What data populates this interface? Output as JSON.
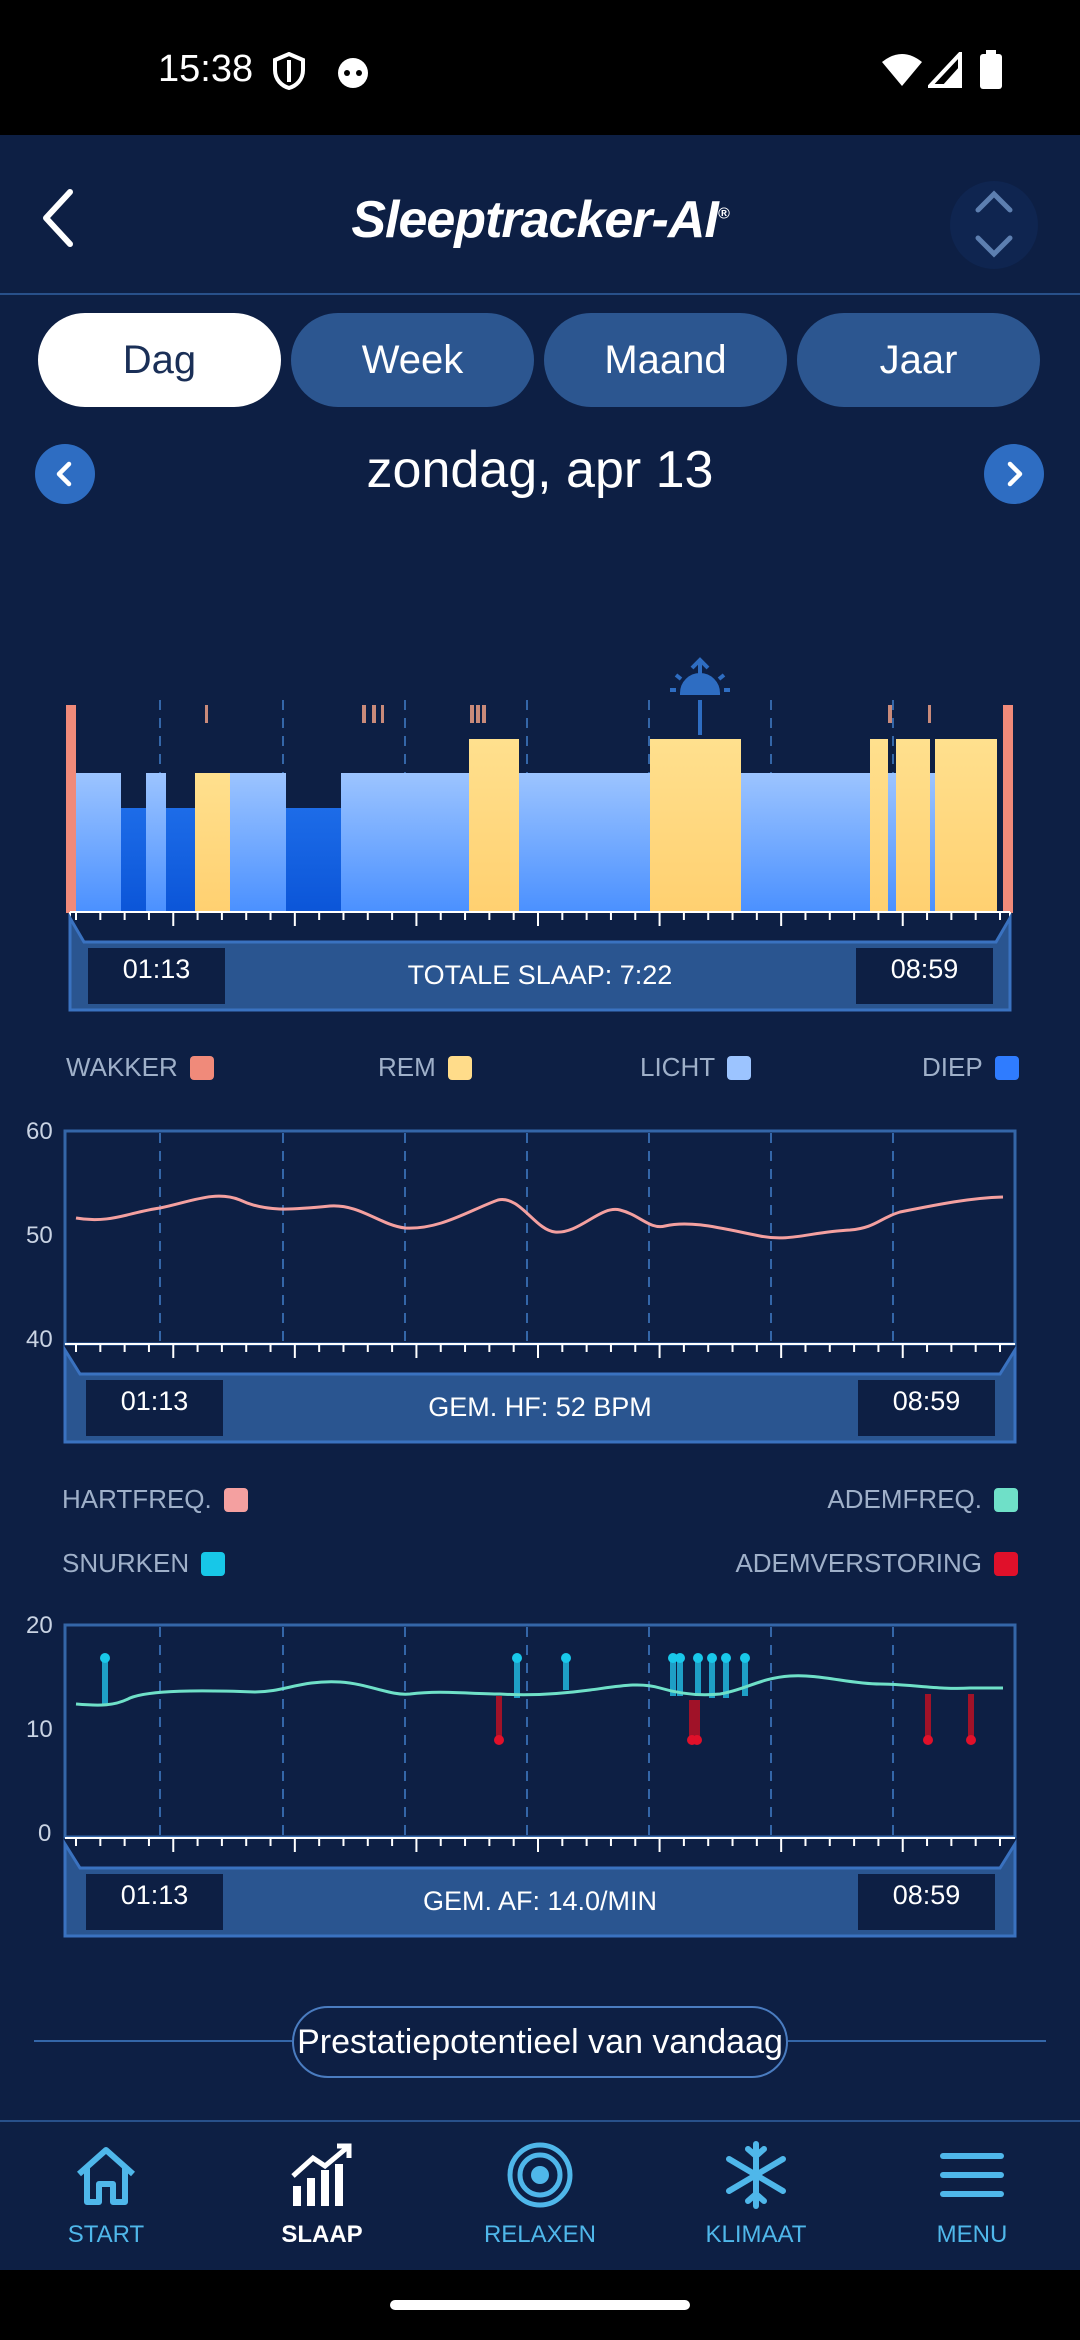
{
  "status": {
    "time": "15:38"
  },
  "header": {
    "logo_text": "Sleeptracker-AI",
    "logo_mark": "®"
  },
  "tabs": [
    {
      "label": "Dag",
      "active": true
    },
    {
      "label": "Week",
      "active": false
    },
    {
      "label": "Maand",
      "active": false
    },
    {
      "label": "Jaar",
      "active": false
    }
  ],
  "date": {
    "title": "zondag, apr 13"
  },
  "sleep_chart": {
    "start": "01:13",
    "end": "08:59",
    "total": "TOTALE SLAAP: 7:22",
    "legend": [
      {
        "label": "WAKKER",
        "color": "#f08a7a"
      },
      {
        "label": "REM",
        "color": "#ffdc8a"
      },
      {
        "label": "LICHT",
        "color": "#9cc4ff"
      },
      {
        "label": "DIEP",
        "color": "#2f7cff"
      }
    ]
  },
  "heart_chart": {
    "y_ticks": [
      "60",
      "50",
      "40"
    ],
    "start": "01:13",
    "end": "08:59",
    "summary": "GEM. HF: 52 BPM",
    "legend_left": [
      {
        "label": "HARTFREQ.",
        "color": "#f4a0a0"
      },
      {
        "label": "SNURKEN",
        "color": "#17c7e8"
      }
    ],
    "legend_right": [
      {
        "label": "ADEMFREQ.",
        "color": "#6fe0c8"
      },
      {
        "label": "ADEMVERSTORING",
        "color": "#e0102a"
      }
    ]
  },
  "breath_chart": {
    "y_ticks": [
      "20",
      "10",
      "0"
    ],
    "start": "01:13",
    "end": "08:59",
    "summary": "GEM. AF: 14.0/MIN"
  },
  "performance": {
    "label": "Prestatiepotentieel van vandaag"
  },
  "nav": [
    {
      "label": "START",
      "icon": "home-icon",
      "active": false
    },
    {
      "label": "SLAAP",
      "icon": "chart-icon",
      "active": true
    },
    {
      "label": "RELAXEN",
      "icon": "target-icon",
      "active": false
    },
    {
      "label": "KLIMAAT",
      "icon": "snowflake-icon",
      "active": false
    },
    {
      "label": "MENU",
      "icon": "menu-icon",
      "active": false
    }
  ]
}
